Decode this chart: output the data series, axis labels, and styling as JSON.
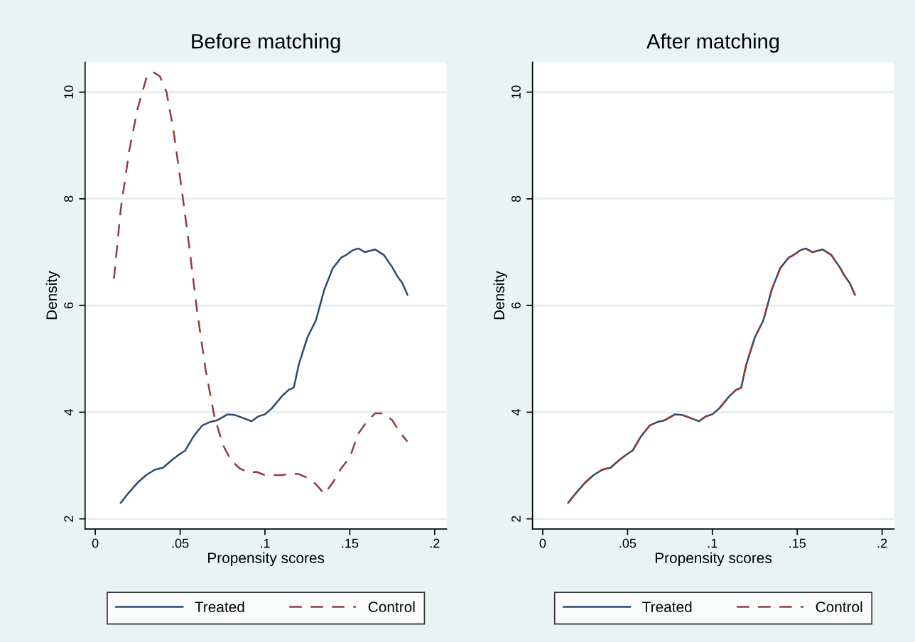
{
  "chart_data": [
    {
      "type": "line",
      "title": "Before matching",
      "xlabel": "Propensity scores",
      "ylabel": "Density",
      "xlim": [
        -0.006,
        0.207
      ],
      "ylim": [
        1.81,
        10.56
      ],
      "xticks": [
        {
          "value": 0,
          "label": "0"
        },
        {
          "value": 0.05,
          "label": ".05"
        },
        {
          "value": 0.1,
          "label": ".1"
        },
        {
          "value": 0.15,
          "label": ".15"
        },
        {
          "value": 0.2,
          "label": ".2"
        }
      ],
      "yticks": [
        2,
        4,
        6,
        8,
        10
      ],
      "grid": "y",
      "legend": "bottom",
      "series": [
        {
          "name": "Treated",
          "color": "#2b4a6f",
          "line_style": "solid",
          "x": [
            0.015,
            0.02,
            0.025,
            0.03,
            0.035,
            0.04,
            0.045,
            0.05,
            0.053,
            0.058,
            0.063,
            0.068,
            0.072,
            0.078,
            0.082,
            0.088,
            0.092,
            0.096,
            0.1,
            0.104,
            0.11,
            0.114,
            0.117,
            0.12,
            0.125,
            0.13,
            0.135,
            0.14,
            0.145,
            0.148,
            0.152,
            0.155,
            0.159,
            0.165,
            0.17,
            0.175,
            0.178,
            0.181,
            0.184
          ],
          "values": [
            2.3,
            2.5,
            2.68,
            2.82,
            2.92,
            2.96,
            3.1,
            3.22,
            3.28,
            3.55,
            3.75,
            3.82,
            3.85,
            3.96,
            3.95,
            3.88,
            3.83,
            3.92,
            3.96,
            4.07,
            4.3,
            4.42,
            4.46,
            4.9,
            5.4,
            5.72,
            6.3,
            6.7,
            6.9,
            6.95,
            7.04,
            7.07,
            7.0,
            7.05,
            6.95,
            6.72,
            6.55,
            6.42,
            6.2
          ]
        },
        {
          "name": "Control",
          "color": "#933b41",
          "line_style": "dashed",
          "x": [
            0.011,
            0.015,
            0.02,
            0.025,
            0.03,
            0.034,
            0.038,
            0.042,
            0.046,
            0.05,
            0.055,
            0.06,
            0.065,
            0.07,
            0.075,
            0.08,
            0.085,
            0.09,
            0.095,
            0.1,
            0.105,
            0.11,
            0.115,
            0.12,
            0.125,
            0.13,
            0.135,
            0.14,
            0.145,
            0.15,
            0.155,
            0.16,
            0.165,
            0.17,
            0.175,
            0.18,
            0.184
          ],
          "values": [
            6.5,
            7.8,
            8.9,
            9.7,
            10.25,
            10.38,
            10.3,
            10.0,
            9.3,
            8.4,
            7.2,
            5.9,
            4.8,
            3.95,
            3.4,
            3.1,
            2.95,
            2.87,
            2.88,
            2.82,
            2.82,
            2.82,
            2.85,
            2.84,
            2.77,
            2.65,
            2.47,
            2.68,
            2.95,
            3.15,
            3.6,
            3.82,
            3.98,
            3.98,
            3.85,
            3.6,
            3.45
          ]
        }
      ]
    },
    {
      "type": "line",
      "title": "After matching",
      "xlabel": "Propensity scores",
      "ylabel": "Density",
      "xlim": [
        -0.006,
        0.207
      ],
      "ylim": [
        1.81,
        10.56
      ],
      "xticks": [
        {
          "value": 0,
          "label": "0"
        },
        {
          "value": 0.05,
          "label": ".05"
        },
        {
          "value": 0.1,
          "label": ".1"
        },
        {
          "value": 0.15,
          "label": ".15"
        },
        {
          "value": 0.2,
          "label": ".2"
        }
      ],
      "yticks": [
        2,
        4,
        6,
        8,
        10
      ],
      "grid": "y",
      "legend": "bottom",
      "series": [
        {
          "name": "Treated",
          "color": "#2b4a6f",
          "line_style": "solid",
          "x": [
            0.015,
            0.02,
            0.025,
            0.03,
            0.035,
            0.04,
            0.045,
            0.05,
            0.053,
            0.058,
            0.063,
            0.068,
            0.072,
            0.078,
            0.082,
            0.088,
            0.092,
            0.096,
            0.1,
            0.104,
            0.11,
            0.114,
            0.117,
            0.12,
            0.125,
            0.13,
            0.135,
            0.14,
            0.145,
            0.148,
            0.152,
            0.155,
            0.159,
            0.165,
            0.17,
            0.175,
            0.178,
            0.181,
            0.184
          ],
          "values": [
            2.3,
            2.5,
            2.68,
            2.82,
            2.92,
            2.96,
            3.1,
            3.22,
            3.28,
            3.55,
            3.75,
            3.82,
            3.85,
            3.96,
            3.95,
            3.88,
            3.83,
            3.92,
            3.96,
            4.07,
            4.3,
            4.42,
            4.46,
            4.9,
            5.4,
            5.72,
            6.3,
            6.7,
            6.9,
            6.95,
            7.04,
            7.07,
            7.0,
            7.05,
            6.95,
            6.72,
            6.55,
            6.42,
            6.2
          ]
        },
        {
          "name": "Control",
          "color": "#933b41",
          "line_style": "dashed",
          "x": [
            0.015,
            0.02,
            0.025,
            0.03,
            0.035,
            0.04,
            0.045,
            0.05,
            0.053,
            0.058,
            0.063,
            0.068,
            0.072,
            0.078,
            0.082,
            0.088,
            0.092,
            0.096,
            0.1,
            0.104,
            0.11,
            0.114,
            0.117,
            0.12,
            0.125,
            0.13,
            0.135,
            0.14,
            0.145,
            0.148,
            0.152,
            0.155,
            0.159,
            0.165,
            0.17,
            0.175,
            0.178,
            0.181,
            0.184
          ],
          "values": [
            2.3,
            2.5,
            2.68,
            2.82,
            2.92,
            2.96,
            3.1,
            3.22,
            3.28,
            3.55,
            3.75,
            3.82,
            3.85,
            3.96,
            3.95,
            3.88,
            3.83,
            3.92,
            3.96,
            4.07,
            4.3,
            4.42,
            4.46,
            4.9,
            5.4,
            5.72,
            6.3,
            6.7,
            6.9,
            6.95,
            7.04,
            7.07,
            7.0,
            7.05,
            6.95,
            6.72,
            6.55,
            6.42,
            6.2
          ]
        }
      ]
    }
  ]
}
